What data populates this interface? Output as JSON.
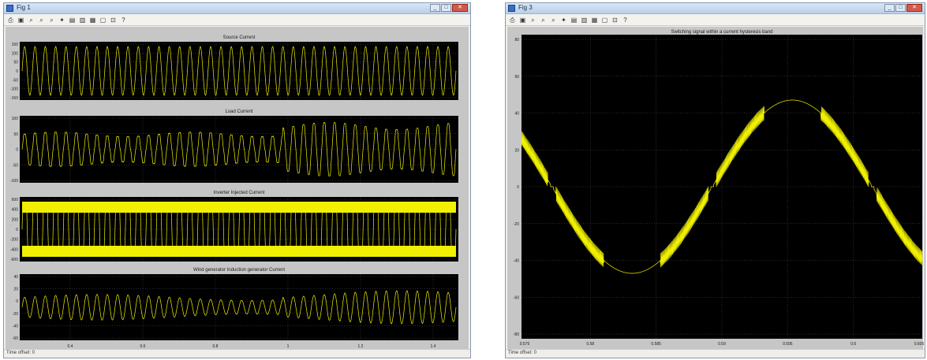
{
  "colors": {
    "trace": "#f0f000",
    "axes_bg": "#000000",
    "grid": "#555555",
    "frame": "#c6c6c6",
    "label": "#1a1a1a"
  },
  "left_window": {
    "title": "Fig 1",
    "status": "Time offset: 0",
    "toolbar_icons": [
      "print-icon",
      "save-icon",
      "zoom-in-icon",
      "zoom-x-icon",
      "zoom-y-icon",
      "autoscale-icon",
      "save-axes-icon",
      "restore-axes-icon",
      "parameters-icon",
      "floating-icon",
      "lock-icon",
      "help-icon"
    ],
    "plots": [
      {
        "title": "Source Current",
        "yticks": [
          "150",
          "100",
          "50",
          "0",
          "-50",
          "-100",
          "-150"
        ]
      },
      {
        "title": "Load Current",
        "yticks": [
          "100",
          "50",
          "0",
          "-50",
          "-100"
        ]
      },
      {
        "title": "Inverter Injected Current",
        "yticks": [
          "600",
          "400",
          "200",
          "0",
          "-200",
          "-400",
          "-600"
        ]
      },
      {
        "title": "Wind generator Induction generator Current",
        "yticks": [
          "40",
          "20",
          "0",
          "-20",
          "-40",
          "-60"
        ]
      }
    ],
    "xticks": [
      "0.4",
      "0.6",
      "0.8",
      "1",
      "1.2",
      "1.4"
    ]
  },
  "right_window": {
    "title": "Fig 3",
    "status": "Time offset: 0",
    "toolbar_icons": [
      "print-icon",
      "save-icon",
      "zoom-in-icon",
      "zoom-x-icon",
      "zoom-y-icon",
      "autoscale-icon",
      "save-axes-icon",
      "restore-axes-icon",
      "parameters-icon",
      "floating-icon",
      "lock-icon",
      "help-icon"
    ],
    "plot_title": "Switching signal within a current hysteresis band",
    "yticks": [
      "80",
      "60",
      "40",
      "20",
      "0",
      "-20",
      "-40",
      "-60",
      "-80"
    ],
    "xticks": [
      "0.575",
      "0.58",
      "0.585",
      "0.59",
      "0.595",
      "0.6",
      "0.605"
    ]
  }
}
